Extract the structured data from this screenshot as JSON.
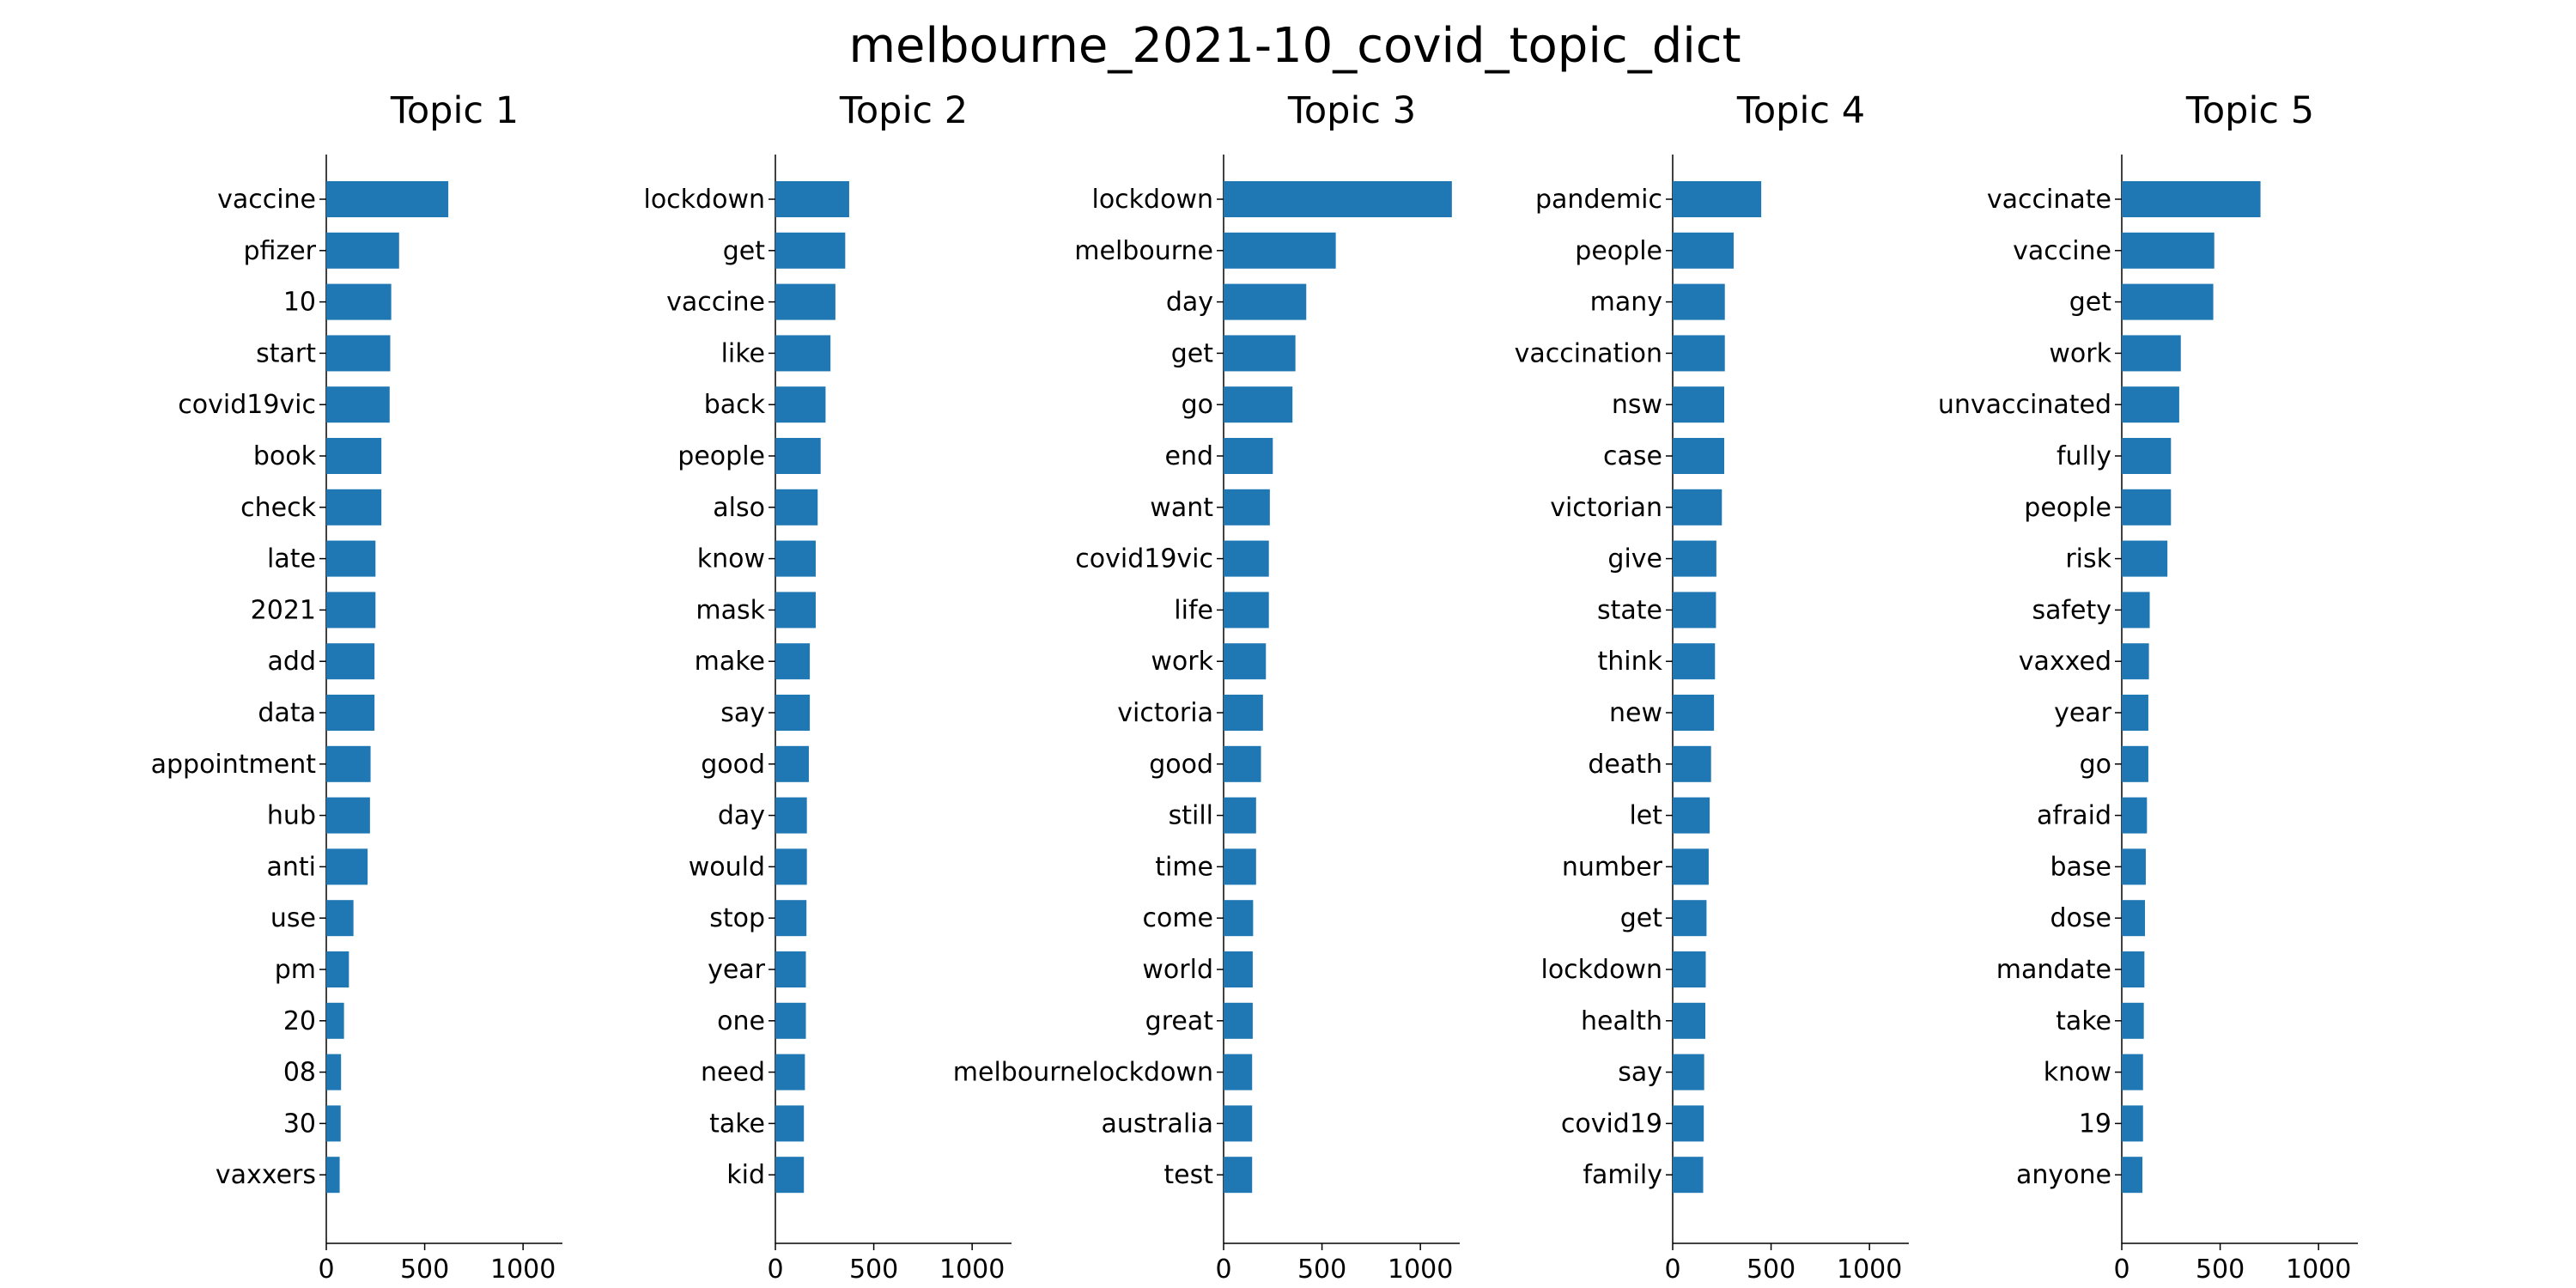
{
  "title": "melbourne_2021-10_covid_topic_dict",
  "colors": {
    "bar": "#1f77b4",
    "axis": "#000000",
    "background": "#ffffff"
  },
  "chart_data": {
    "type": "bar",
    "orientation": "horizontal",
    "suptitle": "melbourne_2021-10_covid_topic_dict",
    "xlim": [
      0,
      1200
    ],
    "xticks": [
      0,
      500,
      1000
    ],
    "grid": false,
    "legend": "none",
    "panels": [
      {
        "title": "Topic 1",
        "categories": [
          "vaccine",
          "pfizer",
          "10",
          "start",
          "covid19vic",
          "book",
          "check",
          "late",
          "2021",
          "add",
          "data",
          "appointment",
          "hub",
          "anti",
          "use",
          "pm",
          "20",
          "08",
          "30",
          "vaxxers"
        ],
        "values": [
          620,
          370,
          330,
          325,
          322,
          280,
          280,
          250,
          250,
          245,
          245,
          225,
          222,
          210,
          138,
          115,
          90,
          75,
          73,
          68
        ]
      },
      {
        "title": "Topic 2",
        "categories": [
          "lockdown",
          "get",
          "vaccine",
          "like",
          "back",
          "people",
          "also",
          "know",
          "mask",
          "make",
          "say",
          "good",
          "day",
          "would",
          "stop",
          "year",
          "one",
          "need",
          "take",
          "kid"
        ],
        "values": [
          375,
          355,
          305,
          280,
          255,
          230,
          215,
          205,
          205,
          175,
          175,
          170,
          160,
          160,
          158,
          155,
          155,
          150,
          145,
          145
        ]
      },
      {
        "title": "Topic 3",
        "categories": [
          "lockdown",
          "melbourne",
          "day",
          "get",
          "go",
          "end",
          "want",
          "covid19vic",
          "life",
          "work",
          "victoria",
          "good",
          "still",
          "time",
          "come",
          "world",
          "great",
          "melbournelockdown",
          "australia",
          "test"
        ],
        "values": [
          1160,
          570,
          420,
          365,
          350,
          250,
          235,
          230,
          230,
          215,
          200,
          190,
          165,
          165,
          150,
          148,
          148,
          145,
          145,
          145
        ]
      },
      {
        "title": "Topic 4",
        "categories": [
          "pandemic",
          "people",
          "many",
          "vaccination",
          "nsw",
          "case",
          "victorian",
          "give",
          "state",
          "think",
          "new",
          "death",
          "let",
          "number",
          "get",
          "lockdown",
          "health",
          "say",
          "covid19",
          "family"
        ],
        "values": [
          450,
          310,
          265,
          265,
          262,
          262,
          250,
          222,
          220,
          215,
          210,
          195,
          188,
          183,
          172,
          168,
          166,
          160,
          158,
          155
        ]
      },
      {
        "title": "Topic 5",
        "categories": [
          "vaccinate",
          "vaccine",
          "get",
          "work",
          "unvaccinated",
          "fully",
          "people",
          "risk",
          "safety",
          "vaxxed",
          "year",
          "go",
          "afraid",
          "base",
          "dose",
          "mandate",
          "take",
          "know",
          "19",
          "anyone"
        ],
        "values": [
          705,
          470,
          465,
          300,
          292,
          250,
          250,
          232,
          142,
          138,
          135,
          135,
          128,
          122,
          118,
          115,
          112,
          108,
          108,
          105
        ]
      }
    ]
  }
}
